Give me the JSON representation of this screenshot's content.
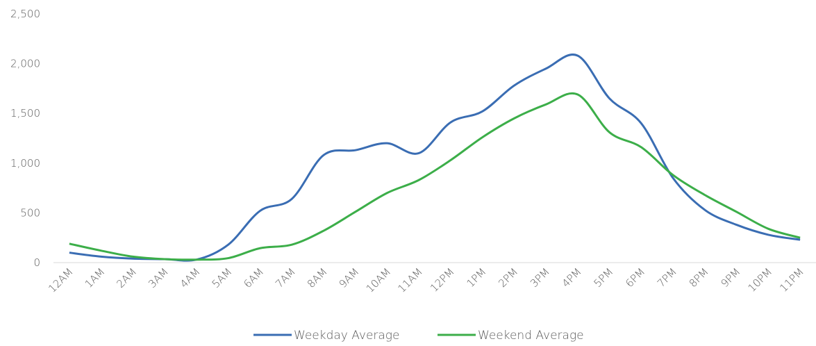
{
  "chart_data": {
    "type": "line",
    "categories": [
      "12AM",
      "1AM",
      "2AM",
      "3AM",
      "4AM",
      "5AM",
      "6AM",
      "7AM",
      "8AM",
      "9AM",
      "10AM",
      "11AM",
      "12PM",
      "1PM",
      "2PM",
      "3PM",
      "4PM",
      "5PM",
      "6PM",
      "7PM",
      "8PM",
      "9PM",
      "10PM",
      "11PM"
    ],
    "series": [
      {
        "name": "Weekday Average",
        "color": "#3a6db3",
        "values": [
          100,
          60,
          40,
          35,
          30,
          180,
          520,
          640,
          1080,
          1130,
          1200,
          1100,
          1410,
          1520,
          1780,
          1950,
          2080,
          1650,
          1400,
          850,
          530,
          380,
          280,
          230
        ]
      },
      {
        "name": "Weekend Average",
        "color": "#3cae49",
        "values": [
          190,
          120,
          60,
          35,
          30,
          45,
          145,
          180,
          320,
          510,
          700,
          830,
          1030,
          1260,
          1450,
          1590,
          1690,
          1310,
          1160,
          880,
          680,
          510,
          340,
          250
        ]
      }
    ],
    "ylim": [
      0,
      2500
    ],
    "yticks": [
      0,
      {
        "value": 500,
        "label": "500"
      },
      {
        "value": 1000,
        "label": "1,000"
      },
      {
        "value": 1500,
        "label": "1,500"
      },
      {
        "value": 2000,
        "label": "2,000"
      },
      {
        "value": 2500,
        "label": "2,500"
      }
    ],
    "legend": "bottom"
  }
}
